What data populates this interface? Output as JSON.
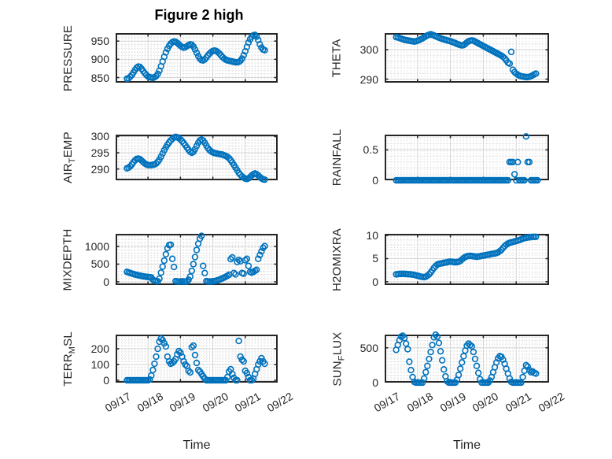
{
  "figure": {
    "title": "Figure 2 high",
    "xlabel": "Time",
    "background_color": "#ffffff",
    "marker_color": "#0072BD",
    "axis_color": "#262626",
    "major_grid_color": "#d4d4d4",
    "minor_grid_color": "#cfcfcf",
    "x_tick_labels": [
      "09/17",
      "09/18",
      "09/19",
      "09/20",
      "09/21",
      "09/22"
    ],
    "x_range_days": [
      0,
      5
    ]
  },
  "chart_data": [
    {
      "type": "scatter",
      "name": "PRESSURE",
      "col": 0,
      "row": 0,
      "ylabel_pre": "PRESSURE",
      "ylabel_sub": "",
      "ylabel_post": "",
      "ylim": [
        836,
        972
      ],
      "yticks": [
        850,
        900,
        950
      ],
      "ytick_labels": [
        "850",
        "900",
        "950"
      ],
      "minor_divisions": 5,
      "x_start_day": 0.35,
      "x_step_day": 0.05,
      "values": [
        847,
        848,
        852,
        857,
        864,
        871,
        877,
        880,
        879,
        874,
        868,
        862,
        857,
        853,
        851,
        850,
        849,
        851,
        854,
        860,
        869,
        881,
        894,
        907,
        919,
        929,
        937,
        943,
        947,
        949,
        948,
        945,
        941,
        937,
        934,
        932,
        933,
        936,
        939,
        941,
        940,
        935,
        927,
        918,
        909,
        902,
        898,
        897,
        900,
        905,
        911,
        916,
        920,
        923,
        924,
        923,
        920,
        916,
        911,
        906,
        902,
        899,
        897,
        896,
        895,
        894,
        893,
        892,
        892,
        893,
        896,
        902,
        911,
        922,
        934,
        946,
        955,
        962,
        966,
        967,
        962,
        953,
        941,
        932,
        927,
        925
      ]
    },
    {
      "type": "scatter",
      "name": "THETA",
      "col": 1,
      "row": 0,
      "ylabel_pre": "THETA",
      "ylabel_sub": "",
      "ylabel_post": "",
      "ylim": [
        288.8,
        305.7
      ],
      "yticks": [
        290,
        300
      ],
      "ytick_labels": [
        "290",
        "300"
      ],
      "minor_divisions": 5,
      "x_start_day": 0.35,
      "x_step_day": 0.05,
      "values": [
        304.3,
        304.2,
        304.0,
        303.8,
        303.6,
        303.4,
        303.3,
        303.2,
        303.1,
        303.0,
        302.9,
        302.8,
        302.9,
        303.1,
        303.3,
        303.6,
        303.9,
        304.2,
        304.6,
        304.9,
        305.1,
        305.3,
        305.1,
        304.9,
        304.6,
        304.4,
        304.1,
        303.9,
        303.7,
        303.5,
        303.4,
        303.2,
        303.1,
        302.9,
        302.7,
        302.5,
        302.3,
        302.0,
        301.8,
        301.6,
        301.5,
        301.6,
        302.0,
        302.5,
        302.9,
        303.1,
        303.2,
        303.1,
        302.8,
        302.5,
        302.2,
        301.9,
        301.6,
        301.3,
        301.0,
        300.7,
        300.4,
        300.1,
        299.8,
        299.5,
        299.2,
        298.9,
        298.6,
        298.3,
        298.0,
        297.6,
        297.1,
        296.4,
        295.6,
        295.3,
        299.3,
        293.2,
        292.4,
        291.9,
        291.5,
        291.2,
        291.0,
        290.9,
        290.8,
        290.7,
        290.7,
        290.8,
        291.0,
        291.3,
        291.6,
        291.9
      ]
    },
    {
      "type": "scatter",
      "name": "AIR_TEMP",
      "col": 0,
      "row": 1,
      "ylabel_pre": "AIR",
      "ylabel_sub": "T",
      "ylabel_post": "EMP",
      "ylim": [
        286.5,
        300.6
      ],
      "yticks": [
        290,
        295,
        300
      ],
      "ytick_labels": [
        "290",
        "295",
        "300"
      ],
      "minor_divisions": 5,
      "x_start_day": 0.35,
      "x_step_day": 0.05,
      "values": [
        290.2,
        290.4,
        290.8,
        291.4,
        292.1,
        292.7,
        293.1,
        293.2,
        293.0,
        292.6,
        292.1,
        291.7,
        291.4,
        291.2,
        291.2,
        291.2,
        291.3,
        291.4,
        291.7,
        292.2,
        292.9,
        293.8,
        294.8,
        295.8,
        296.7,
        297.5,
        298.2,
        298.8,
        299.3,
        299.7,
        299.9,
        299.8,
        299.5,
        299.1,
        298.6,
        298.0,
        297.3,
        296.6,
        295.9,
        295.3,
        295.0,
        295.3,
        296.1,
        297.1,
        298.1,
        298.8,
        299.1,
        298.8,
        298.1,
        297.2,
        296.4,
        295.8,
        295.4,
        295.1,
        294.9,
        294.8,
        294.7,
        294.6,
        294.5,
        294.4,
        294.2,
        294.0,
        293.7,
        293.3,
        292.7,
        292.0,
        291.2,
        290.4,
        289.6,
        288.8,
        288.2,
        287.7,
        287.3,
        287.0,
        286.9,
        287.1,
        287.5,
        288.0,
        288.4,
        288.6,
        288.4,
        288.0,
        287.5,
        287.1,
        286.8,
        286.7
      ]
    },
    {
      "type": "scatter",
      "name": "RAINFALL",
      "col": 1,
      "row": 1,
      "ylabel_pre": "RAINFALL",
      "ylabel_sub": "",
      "ylabel_post": "",
      "ylim": [
        0,
        0.75
      ],
      "yticks": [
        0,
        0.5
      ],
      "ytick_labels": [
        "0",
        "0.5"
      ],
      "minor_divisions": 5,
      "x_start_day": 0.35,
      "x_step_day": 0.05,
      "values": [
        0,
        0,
        0,
        0,
        0,
        0,
        0,
        0,
        0,
        0,
        0,
        0,
        0,
        0,
        0,
        0,
        0,
        0,
        0,
        0,
        0,
        0,
        0,
        0,
        0,
        0,
        0,
        0,
        0,
        0,
        0,
        0,
        0,
        0,
        0,
        0,
        0,
        0,
        0,
        0,
        0,
        0,
        0,
        0,
        0,
        0,
        0,
        0,
        0,
        0,
        0,
        0,
        0,
        0,
        0,
        0,
        0,
        0,
        0,
        0,
        0,
        0,
        0,
        0,
        0,
        0,
        0,
        0,
        0,
        0.3,
        0.3,
        0.3,
        0.1,
        0,
        0.3,
        0,
        0,
        0,
        0,
        0.72,
        0.3,
        0.3,
        0,
        0,
        0,
        0,
        0
      ]
    },
    {
      "type": "scatter",
      "name": "MIXDEPTH",
      "col": 0,
      "row": 2,
      "ylabel_pre": "MIXDEPTH",
      "ylabel_sub": "",
      "ylabel_post": "",
      "ylim": [
        -90,
        1357
      ],
      "yticks": [
        0,
        500,
        1000
      ],
      "ytick_labels": [
        "0",
        "500",
        "1000"
      ],
      "minor_divisions": 5,
      "x_start_day": 0.35,
      "x_step_day": 0.05,
      "values": [
        280,
        265,
        250,
        235,
        220,
        205,
        195,
        185,
        175,
        165,
        155,
        148,
        142,
        136,
        130,
        125,
        60,
        30,
        20,
        15,
        90,
        260,
        430,
        600,
        780,
        950,
        1040,
        1050,
        650,
        420,
        20,
        10,
        5,
        10,
        15,
        10,
        5,
        10,
        60,
        150,
        310,
        500,
        700,
        900,
        1080,
        1220,
        1300,
        450,
        250,
        20,
        10,
        5,
        10,
        15,
        20,
        30,
        45,
        60,
        80,
        100,
        120,
        145,
        170,
        200,
        640,
        690,
        250,
        210,
        560,
        620,
        580,
        250,
        230,
        610,
        650,
        450,
        280,
        260,
        280,
        310,
        340,
        650,
        760,
        860,
        960,
        1010
      ]
    },
    {
      "type": "scatter",
      "name": "H2OMIXRA",
      "col": 1,
      "row": 2,
      "ylabel_pre": "H2OMIXRA",
      "ylabel_sub": "",
      "ylabel_post": "",
      "ylim": [
        -0.7,
        10.35
      ],
      "yticks": [
        0,
        5,
        10
      ],
      "ytick_labels": [
        "0",
        "5",
        "10"
      ],
      "minor_divisions": 5,
      "x_start_day": 0.35,
      "x_step_day": 0.05,
      "values": [
        1.6,
        1.65,
        1.7,
        1.7,
        1.72,
        1.7,
        1.68,
        1.65,
        1.62,
        1.6,
        1.55,
        1.5,
        1.4,
        1.3,
        1.2,
        1.1,
        1.05,
        1.0,
        1.1,
        1.3,
        1.6,
        2.0,
        2.5,
        3.0,
        3.4,
        3.7,
        3.85,
        3.95,
        4.0,
        4.1,
        4.15,
        4.2,
        4.3,
        4.35,
        4.3,
        4.25,
        4.2,
        4.25,
        4.3,
        4.5,
        4.8,
        5.1,
        5.35,
        5.5,
        5.55,
        5.6,
        5.55,
        5.5,
        5.45,
        5.4,
        5.45,
        5.5,
        5.6,
        5.65,
        5.7,
        5.8,
        5.85,
        5.9,
        6.0,
        6.05,
        6.1,
        6.2,
        6.35,
        6.6,
        6.9,
        7.3,
        7.7,
        8.0,
        8.25,
        8.4,
        8.5,
        8.6,
        8.7,
        8.8,
        8.9,
        9.0,
        9.15,
        9.3,
        9.4,
        9.5,
        9.55,
        9.6,
        9.65,
        9.7,
        9.7,
        9.7
      ]
    },
    {
      "type": "scatter",
      "name": "TERR_MSL",
      "col": 0,
      "row": 3,
      "ylabel_pre": "TERR",
      "ylabel_sub": "M",
      "ylabel_post": "SL",
      "ylim": [
        -15,
        290
      ],
      "yticks": [
        0,
        100,
        200
      ],
      "ytick_labels": [
        "0",
        "100",
        "200"
      ],
      "minor_divisions": 5,
      "x_start_day": 0.35,
      "x_step_day": 0.05,
      "values": [
        0,
        0,
        0,
        0,
        0,
        0,
        0,
        0,
        0,
        0,
        0,
        0,
        0,
        0,
        5,
        30,
        65,
        105,
        150,
        200,
        245,
        265,
        255,
        235,
        215,
        150,
        120,
        105,
        110,
        120,
        135,
        165,
        185,
        175,
        150,
        120,
        100,
        90,
        60,
        50,
        210,
        220,
        160,
        110,
        65,
        55,
        40,
        25,
        10,
        0,
        0,
        0,
        0,
        0,
        0,
        0,
        0,
        0,
        0,
        0,
        0,
        0,
        20,
        55,
        70,
        40,
        15,
        0,
        0,
        250,
        150,
        130,
        120,
        60,
        45,
        20,
        0,
        0,
        10,
        40,
        70,
        100,
        120,
        140,
        120,
        105
      ]
    },
    {
      "type": "scatter",
      "name": "SUN_FLUX",
      "col": 1,
      "row": 3,
      "ylabel_pre": "SUN",
      "ylabel_sub": "F",
      "ylabel_post": "LUX",
      "ylim": [
        0,
        689
      ],
      "yticks": [
        0,
        500
      ],
      "ytick_labels": [
        "0",
        "500"
      ],
      "minor_divisions": 10,
      "x_start_day": 0.35,
      "x_step_day": 0.05,
      "values": [
        470,
        540,
        610,
        660,
        672,
        640,
        560,
        480,
        300,
        180,
        80,
        10,
        0,
        0,
        0,
        0,
        0,
        60,
        150,
        240,
        340,
        440,
        540,
        650,
        688,
        660,
        570,
        450,
        320,
        190,
        90,
        20,
        0,
        0,
        0,
        0,
        0,
        40,
        110,
        200,
        290,
        380,
        460,
        530,
        560,
        540,
        520,
        440,
        340,
        240,
        140,
        50,
        0,
        0,
        0,
        0,
        0,
        30,
        80,
        150,
        220,
        290,
        350,
        380,
        370,
        330,
        270,
        200,
        130,
        60,
        10,
        0,
        0,
        0,
        0,
        0,
        0,
        80,
        170,
        250,
        230,
        180,
        150,
        160,
        140,
        130
      ]
    }
  ]
}
